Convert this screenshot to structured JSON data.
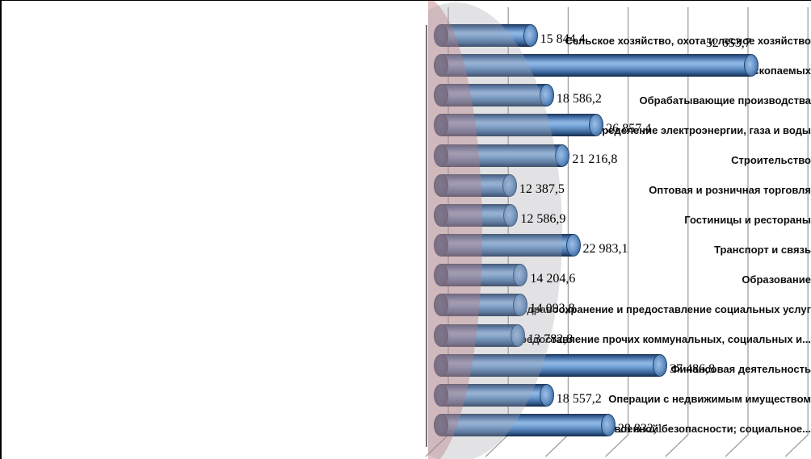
{
  "chart_data": {
    "type": "bar",
    "orientation": "horizontal",
    "style": "3d-cylinder",
    "title": "",
    "xlabel": "",
    "ylabel": "",
    "legend": "none",
    "grid": true,
    "xlim": [
      0,
      60000
    ],
    "gridline_step": 10000,
    "categories": [
      "Сельское хозяйство, охота и лесное хозяйство",
      "Добыча полезных ископаемых",
      "Обрабатывающие производства",
      "Производство и распределение электроэнергии, газа и воды",
      "Строительство",
      "Оптовая и розничная торговля",
      "Гостиницы и рестораны",
      "Транспорт и связь",
      "Образование",
      "Здравоохранение и предоставление социальных услуг",
      "Предоставление прочих коммунальных, социальных и...",
      "Финансовая деятельность",
      "Операции с недвижимым имуществом",
      "Гос  управление и обеспечение военной безопасности; социальное..."
    ],
    "values": [
      15844.4,
      52653.7,
      18586.2,
      26857.4,
      21216.8,
      12387.5,
      12586.9,
      22983.1,
      14204.6,
      14093.8,
      13782.8,
      37486.8,
      18557.2,
      28832.1
    ],
    "data_labels": [
      "15 844,4",
      "52 653,7",
      "18 586,2",
      "26 857,4",
      "21 216,8",
      "12 387,5",
      "12 586,9",
      "22 983,1",
      "14 204,6",
      "14 093,8",
      "13 782,8",
      "37 486,8",
      "18 557,2",
      "28 832,1"
    ],
    "label_above_bar_index": 1,
    "colors": {
      "bar_fill": "#4F81BD",
      "bar_dark_cap": "#254061",
      "bar_light_band": "#8FB6E3",
      "decoration_pink": "#D99694",
      "decoration_gray": "#D9D9DB",
      "gridline": "#A0A0A0",
      "axis_line": "#737373",
      "text": "#000000"
    }
  }
}
